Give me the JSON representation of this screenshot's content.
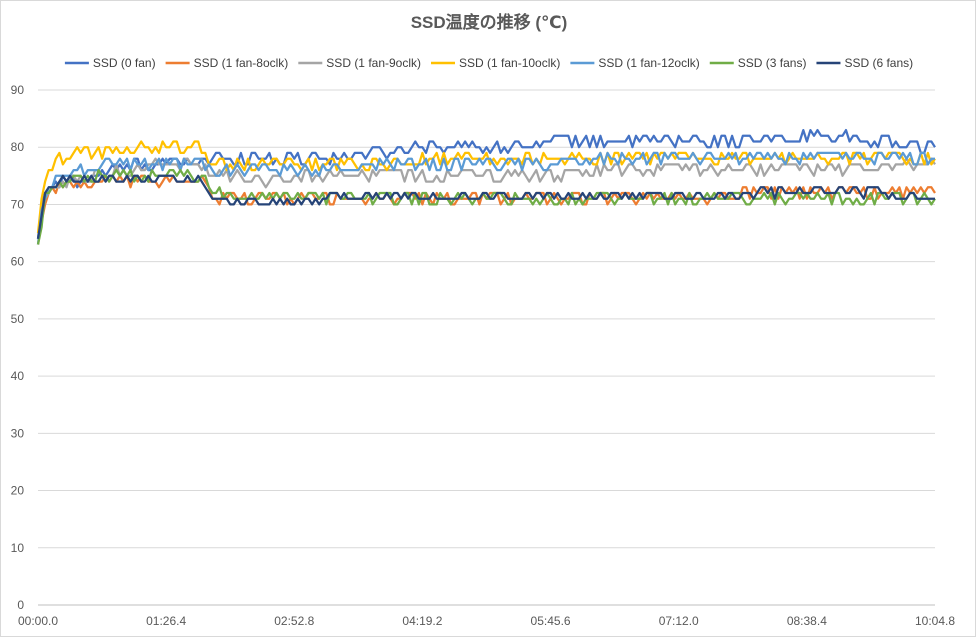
{
  "chart_data": {
    "type": "line",
    "title": "SSD温度の推移 (℃)",
    "xlabel": "",
    "ylabel": "",
    "ylim": [
      0,
      90
    ],
    "yticks": [
      "0",
      "10",
      "20",
      "30",
      "40",
      "50",
      "60",
      "70",
      "80",
      "90"
    ],
    "xlim_seconds": [
      0,
      604.8
    ],
    "xtick_labels": [
      "00:00.0",
      "01:26.4",
      "02:52.8",
      "04:19.2",
      "05:45.6",
      "07:12.0",
      "08:38.4",
      "10:04.8"
    ],
    "grid": "horizontal",
    "legend_position": "top",
    "series": [
      {
        "name": "SSD (0 fan)",
        "color": "#4472c4",
        "points": [
          [
            0,
            64
          ],
          [
            2,
            70
          ],
          [
            5,
            72
          ],
          [
            10,
            73
          ],
          [
            20,
            74
          ],
          [
            30,
            74
          ],
          [
            40,
            75
          ],
          [
            55,
            76
          ],
          [
            70,
            77
          ],
          [
            90,
            77
          ],
          [
            110,
            77
          ],
          [
            115,
            78
          ],
          [
            120,
            78
          ],
          [
            130,
            77
          ],
          [
            140,
            78
          ],
          [
            160,
            78
          ],
          [
            180,
            78
          ],
          [
            200,
            78
          ],
          [
            230,
            79
          ],
          [
            240,
            79
          ],
          [
            260,
            80
          ],
          [
            290,
            80
          ],
          [
            320,
            80
          ],
          [
            360,
            81
          ],
          [
            400,
            81
          ],
          [
            450,
            81
          ],
          [
            500,
            81
          ],
          [
            530,
            82
          ],
          [
            560,
            81
          ],
          [
            590,
            80
          ],
          [
            604.8,
            80
          ]
        ],
        "noise": 1.0
      },
      {
        "name": "SSD (1 fan-8oclk)",
        "color": "#ed7d31",
        "points": [
          [
            0,
            63
          ],
          [
            2,
            66
          ],
          [
            6,
            72
          ],
          [
            10,
            73
          ],
          [
            30,
            73
          ],
          [
            50,
            74
          ],
          [
            70,
            74
          ],
          [
            100,
            74
          ],
          [
            110,
            74
          ],
          [
            115,
            72
          ],
          [
            120,
            71
          ],
          [
            150,
            71
          ],
          [
            200,
            71
          ],
          [
            250,
            71
          ],
          [
            280,
            71
          ],
          [
            300,
            71
          ],
          [
            350,
            71
          ],
          [
            400,
            71
          ],
          [
            450,
            71
          ],
          [
            500,
            72
          ],
          [
            550,
            72
          ],
          [
            590,
            72
          ],
          [
            604.8,
            72
          ]
        ],
        "noise": 1.0
      },
      {
        "name": "SSD (1 fan-9oclk)",
        "color": "#a5a5a5",
        "points": [
          [
            0,
            64
          ],
          [
            2,
            68
          ],
          [
            6,
            72
          ],
          [
            10,
            73
          ],
          [
            30,
            74
          ],
          [
            60,
            76
          ],
          [
            90,
            77
          ],
          [
            110,
            77
          ],
          [
            115,
            76
          ],
          [
            120,
            75
          ],
          [
            150,
            74
          ],
          [
            200,
            75
          ],
          [
            250,
            75
          ],
          [
            300,
            75
          ],
          [
            350,
            75
          ],
          [
            400,
            76
          ],
          [
            450,
            76
          ],
          [
            500,
            76
          ],
          [
            550,
            76
          ],
          [
            604.8,
            77
          ]
        ],
        "noise": 1.0
      },
      {
        "name": "SSD (1 fan-10oclk)",
        "color": "#ffc000",
        "points": [
          [
            0,
            65
          ],
          [
            3,
            73
          ],
          [
            8,
            76
          ],
          [
            15,
            78
          ],
          [
            30,
            79
          ],
          [
            50,
            79
          ],
          [
            70,
            80
          ],
          [
            90,
            80
          ],
          [
            110,
            80
          ],
          [
            113,
            79
          ],
          [
            118,
            77
          ],
          [
            150,
            77
          ],
          [
            200,
            77
          ],
          [
            240,
            77
          ],
          [
            270,
            78
          ],
          [
            300,
            78
          ],
          [
            350,
            78
          ],
          [
            400,
            78
          ],
          [
            450,
            78
          ],
          [
            500,
            78
          ],
          [
            550,
            78
          ],
          [
            604.8,
            78
          ]
        ],
        "noise": 1.2
      },
      {
        "name": "SSD (1 fan-12oclk)",
        "color": "#5b9bd5",
        "points": [
          [
            0,
            63
          ],
          [
            3,
            70
          ],
          [
            8,
            73
          ],
          [
            15,
            75
          ],
          [
            30,
            76
          ],
          [
            60,
            77
          ],
          [
            90,
            77
          ],
          [
            110,
            77
          ],
          [
            115,
            76
          ],
          [
            120,
            76
          ],
          [
            150,
            76
          ],
          [
            200,
            76
          ],
          [
            240,
            77
          ],
          [
            270,
            77
          ],
          [
            300,
            77
          ],
          [
            350,
            77
          ],
          [
            400,
            78
          ],
          [
            450,
            78
          ],
          [
            500,
            78
          ],
          [
            550,
            78
          ],
          [
            604.8,
            78
          ]
        ],
        "noise": 1.0
      },
      {
        "name": "SSD (3 fans)",
        "color": "#70ad47",
        "points": [
          [
            0,
            63
          ],
          [
            2,
            65
          ],
          [
            5,
            72
          ],
          [
            10,
            73
          ],
          [
            30,
            74
          ],
          [
            50,
            75
          ],
          [
            80,
            75
          ],
          [
            110,
            75
          ],
          [
            115,
            73
          ],
          [
            120,
            72
          ],
          [
            150,
            71
          ],
          [
            200,
            71
          ],
          [
            250,
            71
          ],
          [
            300,
            71
          ],
          [
            350,
            71
          ],
          [
            400,
            71
          ],
          [
            450,
            71
          ],
          [
            500,
            71
          ],
          [
            550,
            71
          ],
          [
            604.8,
            71
          ]
        ],
        "noise": 1.0
      },
      {
        "name": "SSD (6 fans)",
        "color": "#264478",
        "points": [
          [
            0,
            64
          ],
          [
            2,
            67
          ],
          [
            5,
            72
          ],
          [
            8,
            73
          ],
          [
            20,
            74
          ],
          [
            60,
            74
          ],
          [
            100,
            74
          ],
          [
            110,
            74
          ],
          [
            115,
            72
          ],
          [
            120,
            71
          ],
          [
            150,
            70
          ],
          [
            180,
            70
          ],
          [
            200,
            71
          ],
          [
            250,
            71
          ],
          [
            300,
            71
          ],
          [
            350,
            71
          ],
          [
            400,
            71
          ],
          [
            450,
            71
          ],
          [
            500,
            72
          ],
          [
            550,
            72
          ],
          [
            604.8,
            71
          ]
        ],
        "noise": 0.8
      }
    ]
  }
}
